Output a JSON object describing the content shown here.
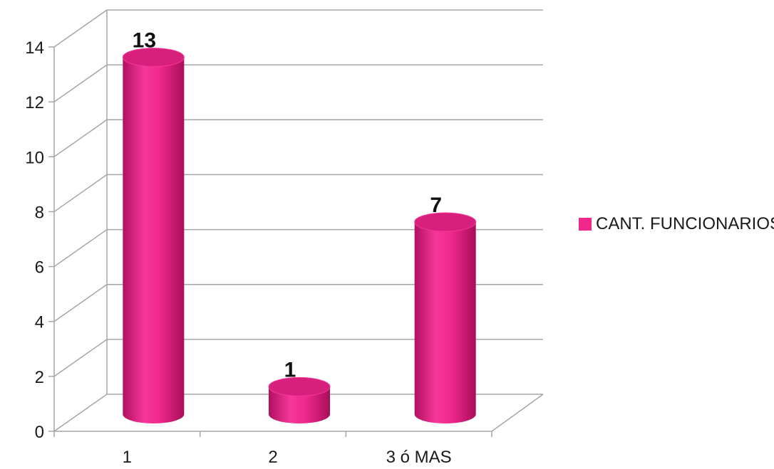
{
  "chart_data": {
    "type": "bar",
    "style": "3d-cylinder",
    "categories": [
      "1",
      "2",
      "3 ó MAS"
    ],
    "series": [
      {
        "name": "CANT. FUNCIONARIOS",
        "values": [
          13,
          1,
          7
        ],
        "color": "#f0288c"
      }
    ],
    "data_labels": [
      "13",
      "1",
      "7"
    ],
    "yticks": [
      "0",
      "2",
      "4",
      "6",
      "8",
      "10",
      "12",
      "14"
    ],
    "ylim": [
      0,
      14
    ],
    "grid": true,
    "legend": "right"
  }
}
